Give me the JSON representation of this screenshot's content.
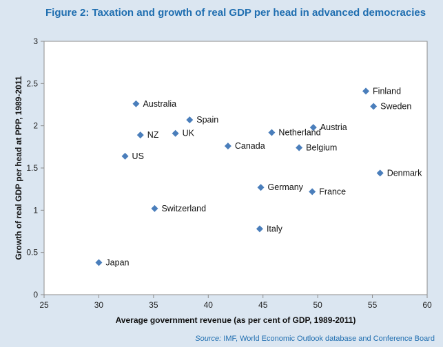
{
  "title": "Figure 2:  Taxation and growth of real GDP per head in advanced democracies",
  "source": {
    "label": "Source:",
    "text": " IMF, World Economic Outlook database and Conference Board"
  },
  "colors": {
    "background": "#dbe6f1",
    "plot_area": "#ffffff",
    "marker": "#4a7ebb",
    "title": "#1f6eb0"
  },
  "chart_data": {
    "type": "scatter",
    "title": "Figure 2:  Taxation and growth of real GDP per head in advanced democracies",
    "xlabel": "Average government revenue (as per cent of GDP, 1989-2011)",
    "ylabel": "Growth of real GDP per head at PPP, 1989-2011",
    "xlim": [
      25,
      60
    ],
    "ylim": [
      0,
      3
    ],
    "xticks": [
      25,
      30,
      35,
      40,
      45,
      50,
      55,
      60
    ],
    "yticks": [
      0,
      0.5,
      1,
      1.5,
      2,
      2.5,
      3
    ],
    "grid": false,
    "points": [
      {
        "label": "Australia",
        "x": 33.4,
        "y": 2.26
      },
      {
        "label": "Spain",
        "x": 38.3,
        "y": 2.07
      },
      {
        "label": "NZ",
        "x": 33.8,
        "y": 1.89
      },
      {
        "label": "UK",
        "x": 37.0,
        "y": 1.91
      },
      {
        "label": "US",
        "x": 32.4,
        "y": 1.64
      },
      {
        "label": "Canada",
        "x": 41.8,
        "y": 1.76
      },
      {
        "label": "Netherland",
        "x": 45.8,
        "y": 1.92
      },
      {
        "label": "Austria",
        "x": 49.6,
        "y": 1.98
      },
      {
        "label": "Belgium",
        "x": 48.3,
        "y": 1.74
      },
      {
        "label": "Finland",
        "x": 54.4,
        "y": 2.41
      },
      {
        "label": "Sweden",
        "x": 55.1,
        "y": 2.23
      },
      {
        "label": "Denmark",
        "x": 55.7,
        "y": 1.44
      },
      {
        "label": "Germany",
        "x": 44.8,
        "y": 1.27
      },
      {
        "label": "France",
        "x": 49.5,
        "y": 1.22
      },
      {
        "label": "Switzerland",
        "x": 35.1,
        "y": 1.02
      },
      {
        "label": "Italy",
        "x": 44.7,
        "y": 0.78
      },
      {
        "label": "Japan",
        "x": 30.0,
        "y": 0.38
      }
    ]
  }
}
